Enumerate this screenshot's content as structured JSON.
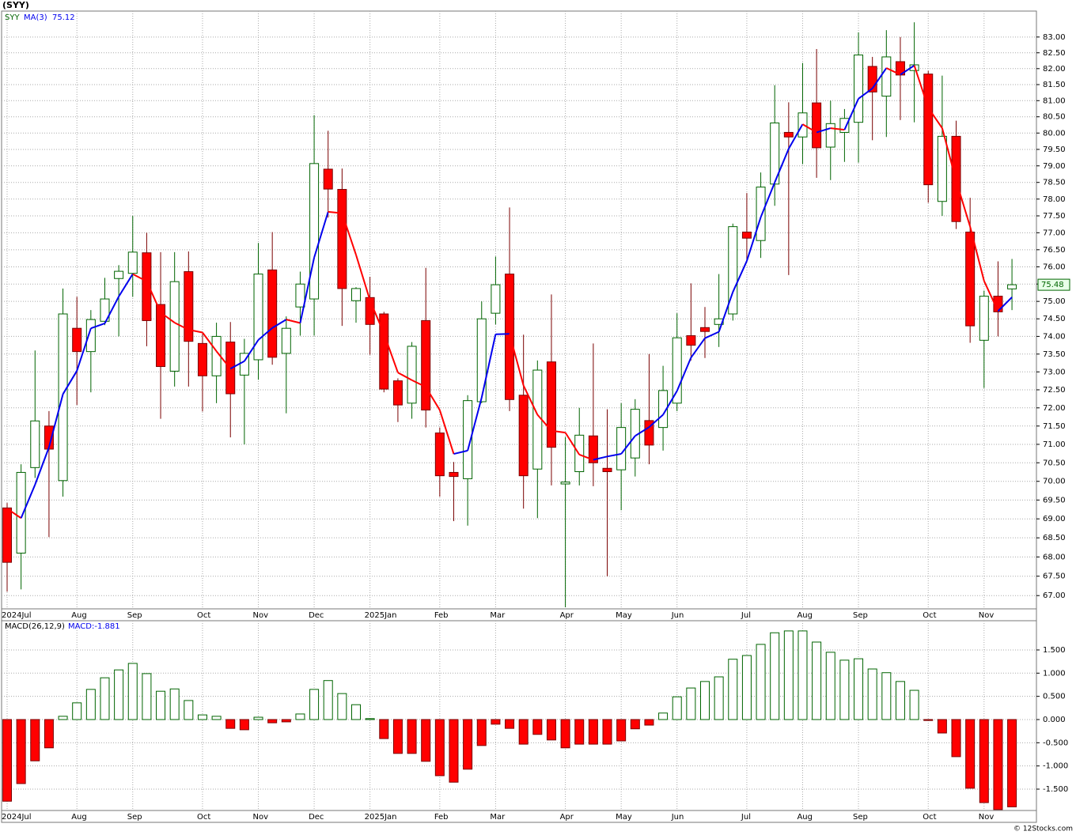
{
  "title": "(SYY)",
  "footer": "© 12Stocks.com",
  "chart_data": [
    {
      "type": "candlestick",
      "symbol": "SYY",
      "log_scale": true,
      "grid": true,
      "categories": [
        "2024Jul",
        null,
        null,
        null,
        null,
        "Aug",
        null,
        null,
        null,
        "Sep",
        null,
        null,
        null,
        null,
        "Oct",
        null,
        null,
        null,
        "Nov",
        null,
        null,
        null,
        "Dec",
        null,
        null,
        null,
        "2025Jan",
        null,
        null,
        null,
        null,
        "Feb",
        null,
        null,
        null,
        "Mar",
        null,
        null,
        null,
        null,
        "Apr",
        null,
        null,
        null,
        "May",
        null,
        null,
        null,
        "Jun",
        null,
        null,
        null,
        null,
        "Jul",
        null,
        null,
        null,
        "Aug",
        null,
        null,
        null,
        "Sep",
        null,
        null,
        null,
        null,
        "Oct",
        null,
        null,
        null,
        "Nov",
        null,
        null
      ],
      "open": [
        69.29,
        68.1,
        70.37,
        71.5,
        70.02,
        74.23,
        73.57,
        74.43,
        75.66,
        75.81,
        76.41,
        74.91,
        73.02,
        75.86,
        73.8,
        72.89,
        73.84,
        72.91,
        73.34,
        75.91,
        73.52,
        74.84,
        75.07,
        78.9,
        78.29,
        75.02,
        75.11,
        74.64,
        72.75,
        72.13,
        74.45,
        71.31,
        70.24,
        70.07,
        72.17,
        74.66,
        75.79,
        72.35,
        70.33,
        73.28,
        69.93,
        70.26,
        71.23,
        70.35,
        70.31,
        70.63,
        71.65,
        71.46,
        72.13,
        74.02,
        74.25,
        74.34,
        74.64,
        77.02,
        76.77,
        78.45,
        80.02,
        79.88,
        80.93,
        79.57,
        80.02,
        80.33,
        82.07,
        81.14,
        82.22,
        81.94,
        81.83,
        77.93,
        79.9,
        77.02,
        73.89,
        75.15,
        75.36
      ],
      "high": [
        69.42,
        70.46,
        73.6,
        71.91,
        75.37,
        75.13,
        74.75,
        75.68,
        76.05,
        77.5,
        77.0,
        76.43,
        76.43,
        76.45,
        74.07,
        74.39,
        74.41,
        73.93,
        76.7,
        77.02,
        74.57,
        75.86,
        80.55,
        80.07,
        78.92,
        75.41,
        75.71,
        74.7,
        72.82,
        73.84,
        75.97,
        71.46,
        70.52,
        72.35,
        75.0,
        76.3,
        77.75,
        74.05,
        73.32,
        75.2,
        71.2,
        72.0,
        73.8,
        71.96,
        72.13,
        72.24,
        73.5,
        73.17,
        74.66,
        75.52,
        74.84,
        75.79,
        77.27,
        78.18,
        78.8,
        81.48,
        80.95,
        82.18,
        82.62,
        81.0,
        80.74,
        83.15,
        82.37,
        83.22,
        83.0,
        83.47,
        81.93,
        81.78,
        80.38,
        78.04,
        75.31,
        76.16,
        76.23
      ],
      "low": [
        67.1,
        67.16,
        70.09,
        68.52,
        69.59,
        72.08,
        72.43,
        74.32,
        74.0,
        75.13,
        73.72,
        71.7,
        72.59,
        72.59,
        71.9,
        72.13,
        71.19,
        71.0,
        72.78,
        73.2,
        71.85,
        74.02,
        74.02,
        77.45,
        74.3,
        74.39,
        73.48,
        72.43,
        71.61,
        71.7,
        71.46,
        69.59,
        68.94,
        68.82,
        72.13,
        74.34,
        71.91,
        69.27,
        69.02,
        69.89,
        66.7,
        69.89,
        69.87,
        67.5,
        69.23,
        70.13,
        70.46,
        70.83,
        71.91,
        73.32,
        73.39,
        73.7,
        74.45,
        76.16,
        76.26,
        77.8,
        75.76,
        79.05,
        78.64,
        78.57,
        79.12,
        79.1,
        79.78,
        79.88,
        80.4,
        80.33,
        77.89,
        77.5,
        77.11,
        73.82,
        72.55,
        74.0,
        74.75
      ],
      "close": [
        67.86,
        70.24,
        71.64,
        70.87,
        74.64,
        73.57,
        74.48,
        75.07,
        75.87,
        76.43,
        74.45,
        73.15,
        75.57,
        73.86,
        72.89,
        74.0,
        72.39,
        73.52,
        75.79,
        73.41,
        74.23,
        75.5,
        79.07,
        78.3,
        75.37,
        75.37,
        74.34,
        72.52,
        72.08,
        73.72,
        71.94,
        70.15,
        70.13,
        72.2,
        74.5,
        75.48,
        72.23,
        70.15,
        73.05,
        70.92,
        69.98,
        71.25,
        70.5,
        70.26,
        71.46,
        71.96,
        70.98,
        72.48,
        73.96,
        73.75,
        74.14,
        74.5,
        77.18,
        76.84,
        78.36,
        80.31,
        79.88,
        80.62,
        79.55,
        80.29,
        80.45,
        82.43,
        81.27,
        82.37,
        81.8,
        82.12,
        78.43,
        79.9,
        77.33,
        74.3,
        75.15,
        74.7,
        75.48
      ],
      "up_color": "#006400",
      "down_color": "#ff0000",
      "ma": {
        "name": "MA(3)",
        "up_color": "#0000ee",
        "down_color": "#ff0000",
        "values": [
          69.27,
          69.02,
          69.91,
          70.92,
          72.38,
          73.03,
          74.23,
          74.37,
          75.14,
          75.79,
          75.58,
          74.68,
          74.39,
          74.19,
          74.11,
          73.58,
          73.09,
          73.3,
          73.9,
          74.24,
          74.48,
          74.38,
          76.27,
          77.62,
          77.58,
          76.35,
          75.03,
          74.08,
          72.98,
          72.77,
          72.58,
          71.94,
          70.74,
          70.83,
          72.28,
          74.06,
          74.07,
          72.62,
          71.81,
          71.37,
          71.32,
          70.72,
          70.58,
          70.67,
          70.74,
          71.23,
          71.47,
          71.81,
          72.47,
          73.4,
          73.95,
          74.13,
          75.27,
          76.17,
          77.46,
          78.5,
          79.52,
          80.27,
          80.02,
          80.15,
          80.1,
          81.06,
          81.38,
          82.02,
          81.81,
          82.1,
          80.78,
          80.15,
          78.55,
          77.18,
          75.59,
          74.72,
          75.12
        ]
      },
      "ylim": [
        66.66,
        83.83
      ],
      "yticks": [
        {
          "value": 67,
          "label": "67.00"
        },
        {
          "value": 67.5,
          "label": "67.50"
        },
        {
          "value": 68,
          "label": "68.00"
        },
        {
          "value": 68.5,
          "label": "68.50"
        },
        {
          "value": 69,
          "label": "69.00"
        },
        {
          "value": 69.5,
          "label": "69.50"
        },
        {
          "value": 70,
          "label": "70.00"
        },
        {
          "value": 70.5,
          "label": "70.50"
        },
        {
          "value": 71,
          "label": "71.00"
        },
        {
          "value": 71.5,
          "label": "71.50"
        },
        {
          "value": 72,
          "label": "72.00"
        },
        {
          "value": 72.5,
          "label": "72.50"
        },
        {
          "value": 73,
          "label": "73.00"
        },
        {
          "value": 73.5,
          "label": "73.50"
        },
        {
          "value": 74,
          "label": "74.00"
        },
        {
          "value": 74.5,
          "label": "74.50"
        },
        {
          "value": 75,
          "label": "75.00"
        },
        {
          "value": 75.5,
          "label": "75.50"
        },
        {
          "value": 76,
          "label": "76.00"
        },
        {
          "value": 76.5,
          "label": "76.50"
        },
        {
          "value": 77,
          "label": "77.00"
        },
        {
          "value": 77.5,
          "label": "77.50"
        },
        {
          "value": 78,
          "label": "78.00"
        },
        {
          "value": 78.5,
          "label": "78.50"
        },
        {
          "value": 79,
          "label": "79.00"
        },
        {
          "value": 79.5,
          "label": "79.50"
        },
        {
          "value": 80,
          "label": "80.00"
        },
        {
          "value": 80.5,
          "label": "80.50"
        },
        {
          "value": 81,
          "label": "81.00"
        },
        {
          "value": 81.5,
          "label": "81.50"
        },
        {
          "value": 82,
          "label": "82.00"
        },
        {
          "value": 82.5,
          "label": "82.50"
        },
        {
          "value": 83,
          "label": "83.00"
        }
      ]
    },
    {
      "type": "bar",
      "legend": "MACD(26,12,9)",
      "legend_value_label": "MACD:-1.881",
      "grid": true,
      "values": [
        -1.76,
        -1.38,
        -0.89,
        -0.61,
        0.07,
        0.36,
        0.65,
        0.9,
        1.07,
        1.21,
        0.99,
        0.61,
        0.66,
        0.41,
        0.1,
        0.07,
        -0.19,
        -0.22,
        0.05,
        -0.07,
        -0.05,
        0.12,
        0.65,
        0.84,
        0.56,
        0.32,
        0.02,
        -0.41,
        -0.73,
        -0.73,
        -0.9,
        -1.21,
        -1.35,
        -1.07,
        -0.56,
        -0.1,
        -0.19,
        -0.53,
        -0.32,
        -0.44,
        -0.61,
        -0.53,
        -0.53,
        -0.53,
        -0.46,
        -0.2,
        -0.12,
        0.14,
        0.49,
        0.68,
        0.82,
        0.92,
        1.3,
        1.38,
        1.62,
        1.87,
        1.91,
        1.91,
        1.67,
        1.45,
        1.28,
        1.31,
        1.09,
        1.01,
        0.82,
        0.63,
        -0.02,
        -0.29,
        -0.8,
        -1.48,
        -1.79,
        -1.94,
        -1.881
      ],
      "up_color": "#006400",
      "down_color": "#ff0000",
      "ylim": [
        -1.96,
        2.13
      ],
      "yticks": [
        {
          "value": -1.5,
          "label": "-1.500"
        },
        {
          "value": -1,
          "label": "-1.000"
        },
        {
          "value": -0.5,
          "label": "-0.500"
        },
        {
          "value": 0,
          "label": "0.000"
        },
        {
          "value": 0.5,
          "label": "0.500"
        },
        {
          "value": 1,
          "label": "1.000"
        },
        {
          "value": 1.5,
          "label": "1.500"
        }
      ]
    }
  ]
}
